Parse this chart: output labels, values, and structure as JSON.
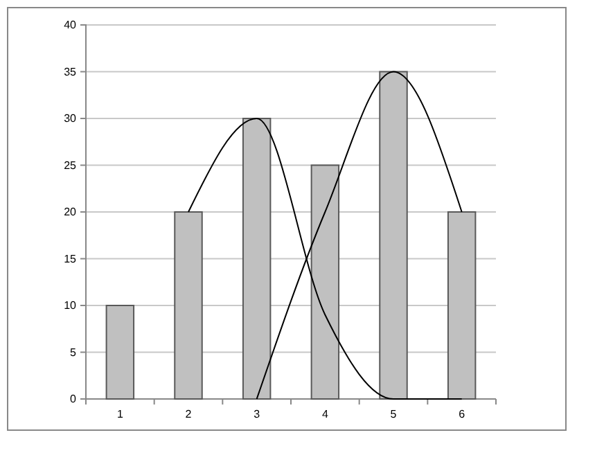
{
  "chart_data": {
    "type": "bar",
    "categories": [
      "1",
      "2",
      "3",
      "4",
      "5",
      "6"
    ],
    "series": [
      {
        "color": "#c0c0c0",
        "values": [
          10,
          20,
          30,
          25,
          35,
          20
        ]
      },
      {
        "type": "line",
        "color": "#000000",
        "values": [
          null,
          20,
          30,
          9,
          0,
          0
        ]
      },
      {
        "type": "line",
        "color": "#000000",
        "values": [
          null,
          null,
          0,
          20,
          35,
          20
        ]
      }
    ],
    "ylim": [
      0,
      40
    ],
    "yticks": [
      0,
      5,
      10,
      15,
      20,
      25,
      30,
      35,
      40
    ],
    "grid": "y",
    "marker": "none",
    "line_style": "solid"
  }
}
